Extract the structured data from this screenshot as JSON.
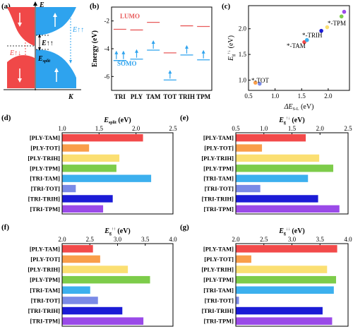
{
  "panel_labels": {
    "a": "(a)",
    "b": "(b)",
    "c": "(c)",
    "d": "(d)",
    "e": "(e)",
    "f": "(f)",
    "g": "(g)"
  },
  "colors": {
    "red": "#f04848",
    "blue": "#2ea3ee",
    "lumo": "#e85a5a",
    "somo": "#2ea3ee",
    "bars": [
      "#f24a4a",
      "#f99e4a",
      "#fbdf72",
      "#7dcc4a",
      "#3cb0ee",
      "#7a8ae6",
      "#1b1bd6",
      "#9a4ae8"
    ]
  },
  "panel_a": {
    "E_label": "E",
    "K_label": "K",
    "Eg_anti": "E↑↓",
    "Eg_anti_sub": "g",
    "Eg_par": "E↑↑",
    "Eg_par_sub": "g",
    "Eg_par2": "E↑↑",
    "Eg_par2_sub": "g",
    "Esplit": "E",
    "Esplit_sub": "split",
    "icons": [
      "arrow-down-icon",
      "arrow-up-icon",
      "arrow-down-icon",
      "arrow-up-icon"
    ]
  },
  "chart_data": [
    {
      "id": "b",
      "type": "scatter",
      "title": "",
      "ylabel": "Energy (eV)",
      "categories": [
        "TRI",
        "PLY",
        "TAM",
        "TOT",
        "TRIH",
        "TPM"
      ],
      "ylim": [
        -7,
        -1
      ],
      "yticks": [
        "-2",
        "-4",
        "-6"
      ],
      "legend": [
        "LUMO",
        "SOMO"
      ],
      "series": [
        {
          "name": "LUMO",
          "values": [
            [
              -2.6
            ],
            [
              -2.65
            ],
            [
              -2.1
            ],
            [
              -4.3
            ],
            [
              -2.35
            ],
            [
              -2.4
            ]
          ]
        },
        {
          "name": "SOMO",
          "values": [
            [
              -4.85,
              -4.85
            ],
            [
              -4.75
            ],
            [
              -4.1
            ],
            [
              -6.25
            ],
            [
              -4.45
            ],
            [
              -4.8
            ]
          ]
        }
      ]
    },
    {
      "id": "c",
      "type": "scatter",
      "xlabel": "ΔE",
      "xlabel_sub": "S-L",
      "xlabel_unit": " (eV)",
      "ylabel": "E",
      "ylabel_sub": "g",
      "ylabel_sup": "↑↓",
      "ylabel_unit": " (eV)",
      "xlim": [
        0.5,
        2.4
      ],
      "ylim": [
        0.8,
        2.45
      ],
      "xticks": [
        "0.5",
        "1.0",
        "1.5",
        "2.0"
      ],
      "yticks": [
        "1.0",
        "1.5",
        "2.0"
      ],
      "points": [
        {
          "x": 0.63,
          "y": 0.95,
          "color": "#f99e4a"
        },
        {
          "x": 0.71,
          "y": 0.93,
          "color": "#7a8ae6"
        },
        {
          "x": 1.55,
          "y": 1.74,
          "color": "#f24a4a"
        },
        {
          "x": 1.6,
          "y": 1.78,
          "color": "#3cb0ee"
        },
        {
          "x": 1.87,
          "y": 1.96,
          "color": "#1b1bd6"
        },
        {
          "x": 1.98,
          "y": 2.03,
          "color": "#fbdf72"
        },
        {
          "x": 2.25,
          "y": 2.24,
          "color": "#7dcc4a"
        },
        {
          "x": 2.3,
          "y": 2.33,
          "color": "#9a4ae8"
        }
      ],
      "annotations": [
        "*-TPM",
        "*-TRIH",
        "*-TAM",
        "*-TOT"
      ]
    },
    {
      "id": "d",
      "type": "bar",
      "xlabel": "E",
      "xlabel_sub": "split",
      "xlabel_unit": " (eV)",
      "xlim": [
        1.0,
        2.5
      ],
      "xticks": [
        "1.0",
        "1.5",
        "2.0",
        "2.5"
      ],
      "categories": [
        "[PLY-TAM]",
        "[PLY-TOT]",
        "[PLY-TRIH]",
        "[PLY-TPM]",
        "[TRI-TAM]",
        "[TRI-TOT]",
        "[TRI-TRIH]",
        "[TRI-TPM]"
      ],
      "values": [
        2.09,
        1.36,
        1.77,
        1.73,
        2.2,
        1.18,
        1.68,
        1.55
      ]
    },
    {
      "id": "e",
      "type": "bar",
      "xlabel": "E",
      "xlabel_sub": "g",
      "xlabel_sup": "↑↓",
      "xlabel_unit": " (eV)",
      "xlim": [
        0.5,
        2.5
      ],
      "xticks": [
        "0.5",
        "1.0",
        "1.5",
        "2.0",
        "2.5"
      ],
      "categories": [
        "[PLY-TAM]",
        "[PLY-TOT]",
        "[PLY-TRIH]",
        "[PLY-TPM]",
        "[TRI-TAM]",
        "[TRI-TOT]",
        "[TRI-TRIH]",
        "[TRI-TPM]"
      ],
      "values": [
        1.74,
        0.96,
        1.98,
        2.23,
        1.78,
        0.93,
        1.96,
        2.34
      ]
    },
    {
      "id": "f",
      "type": "bar",
      "xlabel": "E",
      "xlabel_sub": "g",
      "xlabel_sup": "↑↑",
      "xlabel_unit": " (eV)",
      "xlim": [
        2.0,
        4.0
      ],
      "xticks": [
        "2.0",
        "2.5",
        "3.0",
        "3.5",
        "4.0"
      ],
      "categories": [
        "[PLY-TAM]",
        "[PLY-TOT]",
        "[PLY-TRIH]",
        "[PLY-TPM]",
        "[TRI-TAM]",
        "[TRI-TOT]",
        "[TRI-TRIH]",
        "[TRI-TPM]"
      ],
      "values": [
        2.55,
        2.68,
        3.18,
        3.58,
        2.5,
        2.64,
        3.08,
        3.46
      ]
    },
    {
      "id": "g",
      "type": "bar",
      "xlabel": "E",
      "xlabel_sub": "g",
      "xlabel_sup": "↓↓",
      "xlabel_unit": " (eV)",
      "xlim": [
        2.0,
        4.0
      ],
      "xticks": [
        "2.0",
        "2.5",
        "3.0",
        "3.5",
        "4.0"
      ],
      "categories": [
        "[PLY-TAM]",
        "[PLY-TOT]",
        "[PLY-TRIH]",
        "[PLY-TPM]",
        "[TRI-TAM]",
        "[TRI-TOT]",
        "[TRI-TRIH]",
        "[TRI-TPM]"
      ],
      "values": [
        3.8,
        2.27,
        3.62,
        3.78,
        3.74,
        2.05,
        3.54,
        3.71
      ]
    }
  ]
}
